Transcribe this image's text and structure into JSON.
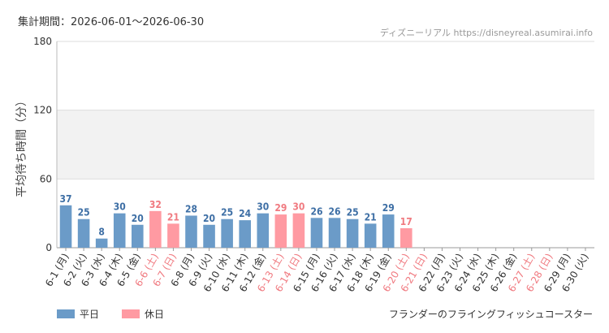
{
  "header": {
    "period": "集計期間：2026-06-01〜2026-06-30",
    "source": "ディズニーリアル https://disneyreal.asumirai.info"
  },
  "legend": {
    "weekday": "平日",
    "holiday": "休日"
  },
  "attraction": "フランダーのフライングフィッシュコースター",
  "colors": {
    "weekday": "#6b9bc8",
    "holiday": "#ff9aa2",
    "weekday_text": "#3e6fa5",
    "holiday_text": "#f07a80"
  },
  "chart_data": {
    "type": "bar",
    "ylabel": "平均待ち時間（分）",
    "ylim": [
      0,
      180
    ],
    "yticks": [
      0,
      60,
      120,
      180
    ],
    "shaded_band": [
      60,
      120
    ],
    "categories": [
      "6-1 (月)",
      "6-2 (火)",
      "6-3 (水)",
      "6-4 (木)",
      "6-5 (金)",
      "6-6 (土)",
      "6-7 (日)",
      "6-8 (月)",
      "6-9 (火)",
      "6-10 (水)",
      "6-11 (木)",
      "6-12 (金)",
      "6-13 (土)",
      "6-14 (日)",
      "6-15 (月)",
      "6-16 (火)",
      "6-17 (水)",
      "6-18 (木)",
      "6-19 (金)",
      "6-20 (土)",
      "6-21 (日)",
      "6-22 (月)",
      "6-23 (火)",
      "6-24 (水)",
      "6-25 (木)",
      "6-26 (金)",
      "6-27 (土)",
      "6-28 (日)",
      "6-29 (月)",
      "6-30 (火)"
    ],
    "values": [
      37,
      25,
      8,
      30,
      20,
      32,
      21,
      28,
      20,
      25,
      24,
      30,
      29,
      30,
      26,
      26,
      25,
      21,
      29,
      17,
      null,
      null,
      null,
      null,
      null,
      null,
      null,
      null,
      null,
      null
    ],
    "holiday": [
      false,
      false,
      false,
      false,
      false,
      true,
      true,
      false,
      false,
      false,
      false,
      false,
      true,
      true,
      false,
      false,
      false,
      false,
      false,
      true,
      true,
      false,
      false,
      false,
      false,
      false,
      true,
      true,
      false,
      false
    ]
  }
}
